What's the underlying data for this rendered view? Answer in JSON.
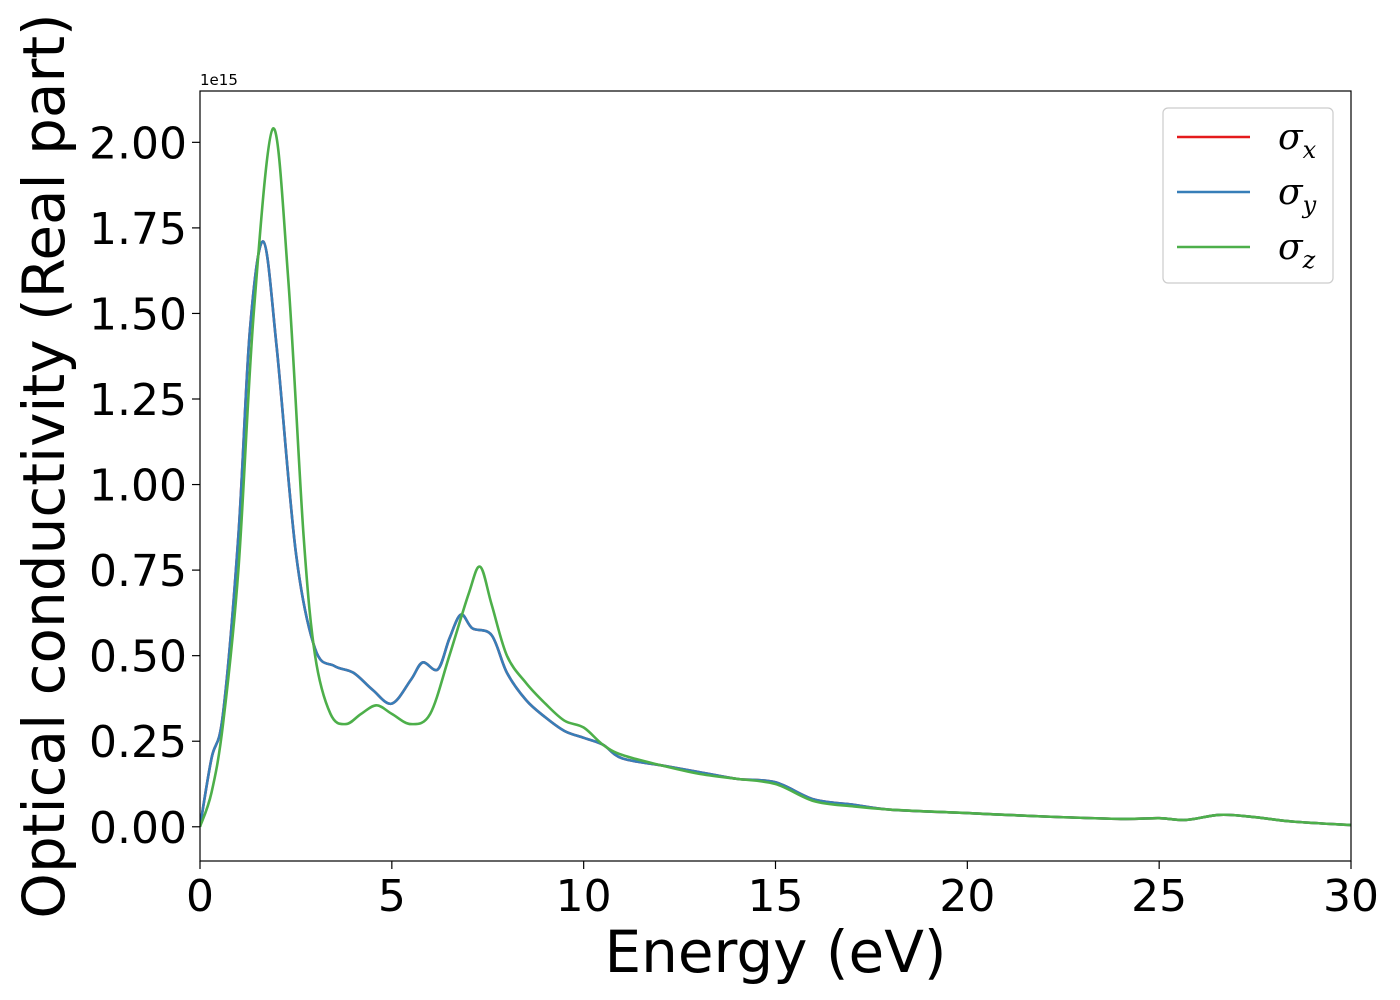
{
  "chart_data": {
    "type": "line",
    "xlabel": "Energy (eV)",
    "ylabel": "Optical conductivity (Real part)",
    "y_offset_label": "1e15",
    "xlim": [
      0,
      30
    ],
    "ylim": [
      -0.1,
      2.15
    ],
    "x_ticks": [
      0,
      5,
      10,
      15,
      20,
      25,
      30
    ],
    "x_tick_labels": [
      "0",
      "5",
      "10",
      "15",
      "20",
      "25",
      "30"
    ],
    "y_ticks": [
      0,
      0.25,
      0.5,
      0.75,
      1.0,
      1.25,
      1.5,
      1.75,
      2.0
    ],
    "y_tick_labels": [
      "0.00",
      "0.25",
      "0.50",
      "0.75",
      "1.00",
      "1.25",
      "1.50",
      "1.75",
      "2.00"
    ],
    "grid": false,
    "legend_position": "top-right",
    "series": [
      {
        "name": "σ_x",
        "legend_base": "σ",
        "legend_sub": "x",
        "color": "#e41a1c",
        "x": [
          0,
          0.3,
          0.6,
          1.0,
          1.3,
          1.65,
          2.0,
          2.5,
          3.0,
          3.5,
          4.0,
          4.5,
          5.0,
          5.5,
          5.8,
          6.2,
          6.5,
          6.8,
          7.1,
          7.6,
          8.0,
          8.5,
          9.0,
          9.5,
          10.0,
          10.5,
          11.0,
          12.0,
          13.0,
          14.0,
          15.0,
          16.0,
          17.0,
          18.0,
          20.0,
          22.0,
          24.0,
          25.0,
          25.7,
          26.6,
          27.5,
          28.5,
          30.0
        ],
        "y": [
          0,
          0.2,
          0.33,
          0.85,
          1.45,
          1.71,
          1.4,
          0.8,
          0.52,
          0.47,
          0.45,
          0.4,
          0.36,
          0.43,
          0.48,
          0.46,
          0.55,
          0.62,
          0.58,
          0.56,
          0.45,
          0.37,
          0.32,
          0.28,
          0.26,
          0.24,
          0.2,
          0.18,
          0.16,
          0.14,
          0.13,
          0.08,
          0.065,
          0.05,
          0.04,
          0.03,
          0.023,
          0.025,
          0.02,
          0.035,
          0.028,
          0.015,
          0.005
        ]
      },
      {
        "name": "σ_y",
        "legend_base": "σ",
        "legend_sub": "y",
        "color": "#377eb8",
        "x": [
          0,
          0.3,
          0.6,
          1.0,
          1.3,
          1.65,
          2.0,
          2.5,
          3.0,
          3.5,
          4.0,
          4.5,
          5.0,
          5.5,
          5.8,
          6.2,
          6.5,
          6.8,
          7.1,
          7.6,
          8.0,
          8.5,
          9.0,
          9.5,
          10.0,
          10.5,
          11.0,
          12.0,
          13.0,
          14.0,
          15.0,
          16.0,
          17.0,
          18.0,
          20.0,
          22.0,
          24.0,
          25.0,
          25.7,
          26.6,
          27.5,
          28.5,
          30.0
        ],
        "y": [
          0,
          0.2,
          0.33,
          0.85,
          1.45,
          1.71,
          1.4,
          0.8,
          0.52,
          0.47,
          0.45,
          0.4,
          0.36,
          0.43,
          0.48,
          0.46,
          0.55,
          0.62,
          0.58,
          0.56,
          0.45,
          0.37,
          0.32,
          0.28,
          0.26,
          0.24,
          0.2,
          0.18,
          0.16,
          0.14,
          0.13,
          0.08,
          0.065,
          0.05,
          0.04,
          0.03,
          0.023,
          0.025,
          0.02,
          0.035,
          0.028,
          0.015,
          0.005
        ]
      },
      {
        "name": "σ_z",
        "legend_base": "σ",
        "legend_sub": "z",
        "color": "#4daf4a",
        "x": [
          0,
          0.3,
          0.6,
          1.0,
          1.4,
          1.9,
          2.3,
          2.7,
          3.0,
          3.4,
          3.8,
          4.2,
          4.6,
          5.0,
          5.5,
          6.0,
          6.5,
          7.0,
          7.3,
          7.6,
          8.0,
          8.5,
          9.0,
          9.5,
          10.0,
          10.5,
          11.0,
          12.0,
          13.0,
          14.0,
          15.0,
          16.0,
          17.0,
          18.0,
          20.0,
          22.0,
          24.0,
          25.0,
          25.7,
          26.6,
          27.5,
          28.5,
          30.0
        ],
        "y": [
          0,
          0.1,
          0.3,
          0.75,
          1.5,
          2.04,
          1.6,
          0.85,
          0.5,
          0.33,
          0.3,
          0.33,
          0.355,
          0.33,
          0.3,
          0.33,
          0.5,
          0.68,
          0.76,
          0.65,
          0.5,
          0.42,
          0.36,
          0.31,
          0.29,
          0.24,
          0.21,
          0.18,
          0.155,
          0.14,
          0.125,
          0.075,
          0.06,
          0.05,
          0.04,
          0.03,
          0.023,
          0.025,
          0.02,
          0.035,
          0.028,
          0.015,
          0.005
        ]
      }
    ]
  }
}
